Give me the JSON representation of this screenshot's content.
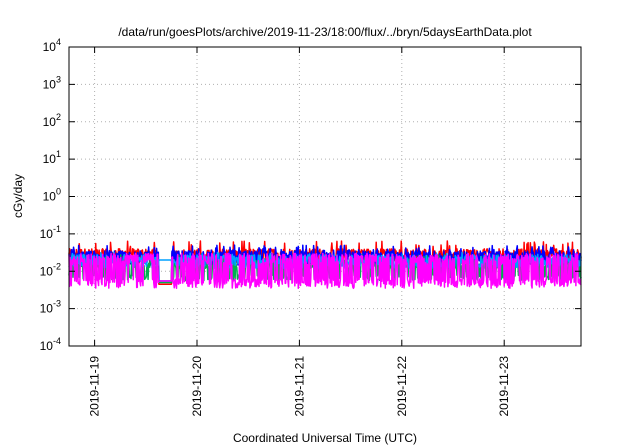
{
  "chart_data": {
    "type": "line",
    "title": "/data/run/goesPlots/archive/2019-11-23/18:00/flux/../bryn/5daysEarthData.plot",
    "xlabel": "Coordinated Universal Time (UTC)",
    "ylabel": "cGy/day",
    "yscale": "log",
    "ylim_exponents": [
      -4,
      4
    ],
    "y_ticks": [
      {
        "mant": "10",
        "exp": "-4",
        "value": -4
      },
      {
        "mant": "10",
        "exp": "-3",
        "value": -3
      },
      {
        "mant": "10",
        "exp": "-2",
        "value": -2
      },
      {
        "mant": "10",
        "exp": "-1",
        "value": -1
      },
      {
        "mant": "10",
        "exp": "0",
        "value": 0
      },
      {
        "mant": "10",
        "exp": "1",
        "value": 1
      },
      {
        "mant": "10",
        "exp": "2",
        "value": 2
      },
      {
        "mant": "10",
        "exp": "3",
        "value": 3
      },
      {
        "mant": "10",
        "exp": "4",
        "value": 4
      }
    ],
    "x_start": "2019-11-18 18:00",
    "x_end": "2019-11-23 18:00",
    "x_tick_labels": [
      "2019-11-19",
      "2019-11-20",
      "2019-11-21",
      "2019-11-22",
      "2019-11-23"
    ],
    "grid": true,
    "data_gaps": [
      [
        "2019-11-19 15:00",
        "2019-11-19 18:00"
      ]
    ],
    "series": [
      {
        "color": "#ff0000",
        "typical": 0.032,
        "low": 0.022,
        "high": 0.065,
        "baseline": 0.0045
      },
      {
        "color": "#0000ff",
        "typical": 0.028,
        "low": 0.02,
        "high": 0.05,
        "baseline": 0.0055
      },
      {
        "color": "#00b050",
        "typical": 0.016,
        "low": 0.008,
        "high": 0.028,
        "baseline": 0.005
      },
      {
        "color": "#00a0ff",
        "typical": 0.022,
        "low": 0.017,
        "high": 0.032,
        "baseline": 0.02
      },
      {
        "color": "#ff00ff",
        "typical": 0.006,
        "low": 0.0035,
        "high": 0.03,
        "baseline": 0.0055
      }
    ]
  }
}
